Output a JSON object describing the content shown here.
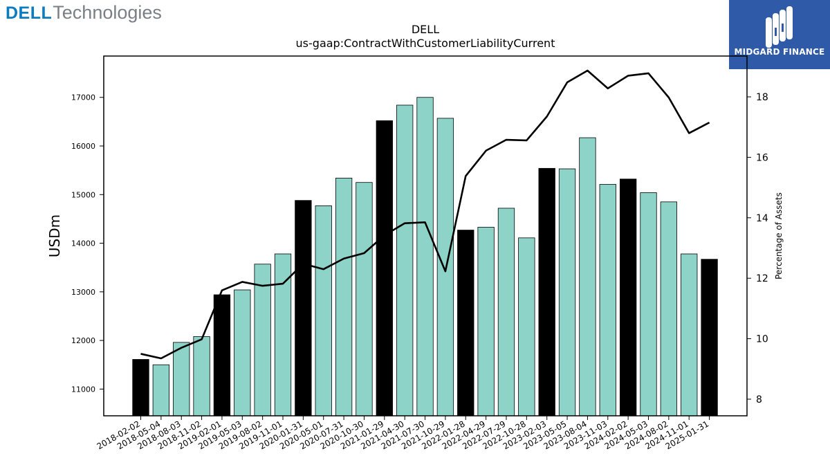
{
  "branding": {
    "left_logo": {
      "primary": "DELL",
      "secondary": "Technologies",
      "color_primary": "#0a7dc2",
      "color_secondary": "#7a7f85"
    },
    "right_logo": {
      "text": "MIDGARD FINANCE",
      "background": "#2f5aa8",
      "icon": "midgard-finance-logo-icon"
    }
  },
  "chart_data": {
    "type": "bar",
    "title": "DELL",
    "subtitle": "us-gaap:ContractWithCustomerLiabilityCurrent",
    "ylabel": "USDm",
    "y2label": "Percentage of Assets",
    "ylim": [
      10450,
      17850
    ],
    "y2lim": [
      7.45,
      19.35
    ],
    "yticks": [
      11000,
      12000,
      13000,
      14000,
      15000,
      16000,
      17000
    ],
    "y2ticks": [
      8,
      10,
      12,
      14,
      16,
      18
    ],
    "colors": {
      "fiscal_year_end": "#000000",
      "quarter": "#8dd3c7",
      "line": "#000000"
    },
    "categories": [
      "2018-02-02",
      "2018-05-04",
      "2018-08-03",
      "2018-11-02",
      "2019-02-01",
      "2019-05-03",
      "2019-08-02",
      "2019-11-01",
      "2020-01-31",
      "2020-05-01",
      "2020-07-31",
      "2020-10-30",
      "2021-01-29",
      "2021-04-30",
      "2021-07-30",
      "2021-10-29",
      "2022-01-28",
      "2022-04-29",
      "2022-07-29",
      "2022-10-28",
      "2023-02-03",
      "2023-05-05",
      "2023-08-04",
      "2023-11-03",
      "2024-02-02",
      "2024-05-03",
      "2024-08-02",
      "2024-11-01",
      "2025-01-31"
    ],
    "series": [
      {
        "kind": "bar",
        "values": [
          11610,
          11500,
          11960,
          12080,
          12940,
          13040,
          13570,
          13780,
          14880,
          14770,
          15340,
          15250,
          16520,
          16840,
          17000,
          16570,
          14270,
          14330,
          14720,
          14110,
          15540,
          15530,
          16170,
          15210,
          15320,
          15040,
          14850,
          13780,
          13670
        ],
        "fiscal_year_end": [
          true,
          false,
          false,
          false,
          true,
          false,
          false,
          false,
          true,
          false,
          false,
          false,
          true,
          false,
          false,
          false,
          true,
          false,
          false,
          false,
          true,
          false,
          false,
          false,
          true,
          false,
          false,
          false,
          true
        ]
      },
      {
        "kind": "line",
        "axis": "right",
        "values": [
          9.5,
          9.35,
          9.7,
          9.98,
          11.6,
          11.88,
          11.75,
          11.82,
          12.48,
          12.3,
          12.65,
          12.83,
          13.42,
          13.82,
          13.85,
          12.23,
          15.38,
          16.22,
          16.58,
          16.56,
          17.35,
          18.48,
          18.87,
          18.28,
          18.7,
          18.78,
          17.98,
          16.8,
          17.15
        ]
      }
    ]
  }
}
